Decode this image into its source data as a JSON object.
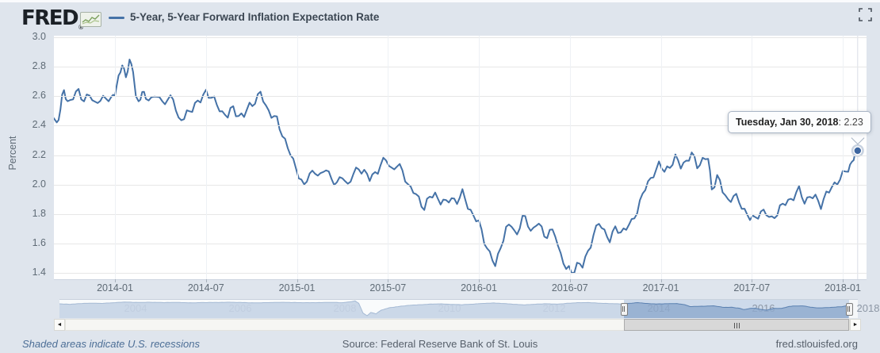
{
  "page": {
    "background": "#dfe5ed"
  },
  "header": {
    "logo_text": "FRED",
    "registered_mark": "®",
    "legend_dash_color": "#4572a7",
    "series_title": "5-Year, 5-Year Forward Inflation Expectation Rate"
  },
  "tooltip": {
    "date": "Tuesday, Jan 30, 2018",
    "separator": ": ",
    "value": "2.23"
  },
  "chart_data": {
    "type": "line",
    "title": "5-Year, 5-Year Forward Inflation Expectation Rate",
    "ylabel": "Percent",
    "ylim": [
      1.36,
      3.01
    ],
    "grid": true,
    "line_color": "#4572a7",
    "yticks": [
      {
        "label": "3.0",
        "value": 3.0
      },
      {
        "label": "2.8",
        "value": 2.8
      },
      {
        "label": "2.6",
        "value": 2.6
      },
      {
        "label": "2.4",
        "value": 2.4
      },
      {
        "label": "2.2",
        "value": 2.2
      },
      {
        "label": "2.0",
        "value": 2.0
      },
      {
        "label": "1.8",
        "value": 1.8
      },
      {
        "label": "1.6",
        "value": 1.6
      },
      {
        "label": "1.4",
        "value": 1.4
      }
    ],
    "xticks": [
      {
        "label": "2014-01",
        "t": 2014.0
      },
      {
        "label": "2014-07",
        "t": 2014.5
      },
      {
        "label": "2015-01",
        "t": 2015.0
      },
      {
        "label": "2015-07",
        "t": 2015.5
      },
      {
        "label": "2016-01",
        "t": 2016.0
      },
      {
        "label": "2016-07",
        "t": 2016.5
      },
      {
        "label": "2017-01",
        "t": 2017.0
      },
      {
        "label": "2017-07",
        "t": 2017.5
      },
      {
        "label": "2018-01",
        "t": 2018.0
      }
    ],
    "series": [
      {
        "name": "5-Year, 5-Year Forward Inflation Expectation Rate",
        "units": "Percent",
        "points": [
          [
            2013.664,
            2.45
          ],
          [
            2013.68,
            2.42
          ],
          [
            2013.7,
            2.52
          ],
          [
            2013.72,
            2.63
          ],
          [
            2013.74,
            2.56
          ],
          [
            2013.77,
            2.6
          ],
          [
            2013.8,
            2.63
          ],
          [
            2013.83,
            2.57
          ],
          [
            2013.86,
            2.61
          ],
          [
            2013.89,
            2.55
          ],
          [
            2013.92,
            2.59
          ],
          [
            2013.95,
            2.56
          ],
          [
            2013.98,
            2.6
          ],
          [
            2014.0,
            2.63
          ],
          [
            2014.02,
            2.7
          ],
          [
            2014.04,
            2.83
          ],
          [
            2014.06,
            2.74
          ],
          [
            2014.08,
            2.82
          ],
          [
            2014.1,
            2.79
          ],
          [
            2014.115,
            2.6
          ],
          [
            2014.13,
            2.55
          ],
          [
            2014.15,
            2.63
          ],
          [
            2014.17,
            2.6
          ],
          [
            2014.2,
            2.56
          ],
          [
            2014.23,
            2.62
          ],
          [
            2014.26,
            2.57
          ],
          [
            2014.29,
            2.55
          ],
          [
            2014.32,
            2.6
          ],
          [
            2014.35,
            2.45
          ],
          [
            2014.38,
            2.44
          ],
          [
            2014.41,
            2.5
          ],
          [
            2014.44,
            2.55
          ],
          [
            2014.47,
            2.57
          ],
          [
            2014.5,
            2.63
          ],
          [
            2014.53,
            2.59
          ],
          [
            2014.56,
            2.55
          ],
          [
            2014.59,
            2.49
          ],
          [
            2014.62,
            2.46
          ],
          [
            2014.65,
            2.52
          ],
          [
            2014.68,
            2.48
          ],
          [
            2014.71,
            2.46
          ],
          [
            2014.74,
            2.53
          ],
          [
            2014.77,
            2.58
          ],
          [
            2014.8,
            2.62
          ],
          [
            2014.83,
            2.52
          ],
          [
            2014.86,
            2.48
          ],
          [
            2014.89,
            2.44
          ],
          [
            2014.92,
            2.34
          ],
          [
            2014.95,
            2.25
          ],
          [
            2014.98,
            2.15
          ],
          [
            2015.01,
            2.08
          ],
          [
            2015.04,
            1.98
          ],
          [
            2015.07,
            2.06
          ],
          [
            2015.1,
            2.11
          ],
          [
            2015.13,
            2.05
          ],
          [
            2015.16,
            2.1
          ],
          [
            2015.19,
            2.05
          ],
          [
            2015.22,
            2.0
          ],
          [
            2015.25,
            2.06
          ],
          [
            2015.28,
            1.99
          ],
          [
            2015.31,
            2.07
          ],
          [
            2015.34,
            2.12
          ],
          [
            2015.37,
            2.08
          ],
          [
            2015.4,
            2.03
          ],
          [
            2015.43,
            2.09
          ],
          [
            2015.46,
            2.13
          ],
          [
            2015.49,
            2.16
          ],
          [
            2015.52,
            2.11
          ],
          [
            2015.55,
            2.14
          ],
          [
            2015.58,
            2.08
          ],
          [
            2015.61,
            2.0
          ],
          [
            2015.64,
            1.96
          ],
          [
            2015.67,
            1.9
          ],
          [
            2015.7,
            1.84
          ],
          [
            2015.73,
            1.91
          ],
          [
            2015.76,
            1.94
          ],
          [
            2015.79,
            1.89
          ],
          [
            2015.82,
            1.86
          ],
          [
            2015.85,
            1.92
          ],
          [
            2015.88,
            1.89
          ],
          [
            2015.91,
            1.93
          ],
          [
            2015.94,
            1.86
          ],
          [
            2015.97,
            1.79
          ],
          [
            2016.0,
            1.74
          ],
          [
            2016.03,
            1.62
          ],
          [
            2016.06,
            1.52
          ],
          [
            2016.09,
            1.46
          ],
          [
            2016.12,
            1.58
          ],
          [
            2016.15,
            1.68
          ],
          [
            2016.18,
            1.74
          ],
          [
            2016.21,
            1.66
          ],
          [
            2016.24,
            1.77
          ],
          [
            2016.27,
            1.73
          ],
          [
            2016.3,
            1.7
          ],
          [
            2016.33,
            1.74
          ],
          [
            2016.36,
            1.64
          ],
          [
            2016.39,
            1.69
          ],
          [
            2016.42,
            1.66
          ],
          [
            2016.45,
            1.52
          ],
          [
            2016.48,
            1.43
          ],
          [
            2016.51,
            1.4
          ],
          [
            2016.54,
            1.47
          ],
          [
            2016.57,
            1.44
          ],
          [
            2016.6,
            1.53
          ],
          [
            2016.63,
            1.68
          ],
          [
            2016.66,
            1.73
          ],
          [
            2016.69,
            1.67
          ],
          [
            2016.72,
            1.64
          ],
          [
            2016.75,
            1.7
          ],
          [
            2016.78,
            1.67
          ],
          [
            2016.81,
            1.71
          ],
          [
            2016.84,
            1.74
          ],
          [
            2016.87,
            1.83
          ],
          [
            2016.9,
            1.93
          ],
          [
            2016.93,
            2.0
          ],
          [
            2016.96,
            2.09
          ],
          [
            2016.99,
            2.13
          ],
          [
            2017.02,
            2.08
          ],
          [
            2017.05,
            2.14
          ],
          [
            2017.08,
            2.18
          ],
          [
            2017.11,
            2.12
          ],
          [
            2017.14,
            2.16
          ],
          [
            2017.17,
            2.21
          ],
          [
            2017.2,
            2.13
          ],
          [
            2017.23,
            2.16
          ],
          [
            2017.26,
            2.18
          ],
          [
            2017.28,
            1.98
          ],
          [
            2017.31,
            2.05
          ],
          [
            2017.34,
            1.95
          ],
          [
            2017.37,
            1.9
          ],
          [
            2017.4,
            1.93
          ],
          [
            2017.43,
            1.87
          ],
          [
            2017.46,
            1.83
          ],
          [
            2017.49,
            1.78
          ],
          [
            2017.52,
            1.76
          ],
          [
            2017.55,
            1.82
          ],
          [
            2017.58,
            1.8
          ],
          [
            2017.61,
            1.77
          ],
          [
            2017.64,
            1.81
          ],
          [
            2017.67,
            1.85
          ],
          [
            2017.7,
            1.9
          ],
          [
            2017.73,
            1.92
          ],
          [
            2017.76,
            1.95
          ],
          [
            2017.79,
            1.89
          ],
          [
            2017.82,
            1.93
          ],
          [
            2017.85,
            1.9
          ],
          [
            2017.88,
            1.86
          ],
          [
            2017.91,
            1.94
          ],
          [
            2017.94,
            1.98
          ],
          [
            2017.97,
            2.02
          ],
          [
            2018.0,
            2.06
          ],
          [
            2018.03,
            2.11
          ],
          [
            2018.05,
            2.16
          ],
          [
            2018.07,
            2.2
          ],
          [
            2018.082,
            2.23
          ]
        ]
      }
    ],
    "last_point": {
      "t": 2018.082,
      "value": 2.23,
      "date_label": "Tuesday, Jan 30, 2018"
    }
  },
  "navigator": {
    "area_color": "#8fa9cd",
    "edge_color": "#5b81b1",
    "year_labels": [
      {
        "label": "2004",
        "year": 2004
      },
      {
        "label": "2006",
        "year": 2006
      },
      {
        "label": "2008",
        "year": 2008
      },
      {
        "label": "2010",
        "year": 2010
      },
      {
        "label": "2012",
        "year": 2012
      },
      {
        "label": "2014",
        "year": 2014
      },
      {
        "label": "2016",
        "year": 2016
      },
      {
        "label": "2018",
        "year": 2018
      }
    ],
    "xrange": [
      2003.0,
      2018.26
    ],
    "yrange": [
      0,
      3.2
    ],
    "selection": {
      "from_t": 2013.664,
      "to_t": 2018.082
    },
    "points": [
      [
        2003.0,
        2.5
      ],
      [
        2003.2,
        2.42
      ],
      [
        2003.4,
        2.55
      ],
      [
        2003.6,
        2.62
      ],
      [
        2003.8,
        2.58
      ],
      [
        2004.0,
        2.68
      ],
      [
        2004.25,
        2.82
      ],
      [
        2004.5,
        2.74
      ],
      [
        2004.75,
        2.78
      ],
      [
        2005.0,
        2.72
      ],
      [
        2005.25,
        2.76
      ],
      [
        2005.5,
        2.68
      ],
      [
        2005.75,
        2.72
      ],
      [
        2006.0,
        2.74
      ],
      [
        2006.25,
        2.78
      ],
      [
        2006.5,
        2.72
      ],
      [
        2006.75,
        2.68
      ],
      [
        2007.0,
        2.72
      ],
      [
        2007.25,
        2.76
      ],
      [
        2007.5,
        2.72
      ],
      [
        2007.75,
        2.7
      ],
      [
        2008.0,
        2.72
      ],
      [
        2008.2,
        2.76
      ],
      [
        2008.4,
        2.7
      ],
      [
        2008.55,
        2.85
      ],
      [
        2008.65,
        3.02
      ],
      [
        2008.72,
        2.6
      ],
      [
        2008.8,
        0.9
      ],
      [
        2008.88,
        0.4
      ],
      [
        2008.95,
        1.0
      ],
      [
        2009.05,
        0.75
      ],
      [
        2009.15,
        1.4
      ],
      [
        2009.3,
        1.8
      ],
      [
        2009.5,
        2.05
      ],
      [
        2009.7,
        2.25
      ],
      [
        2009.9,
        2.35
      ],
      [
        2010.1,
        2.45
      ],
      [
        2010.3,
        2.5
      ],
      [
        2010.5,
        2.4
      ],
      [
        2010.7,
        2.35
      ],
      [
        2010.9,
        2.45
      ],
      [
        2011.1,
        2.58
      ],
      [
        2011.3,
        2.65
      ],
      [
        2011.5,
        2.55
      ],
      [
        2011.7,
        2.42
      ],
      [
        2011.9,
        2.32
      ],
      [
        2012.1,
        2.45
      ],
      [
        2012.3,
        2.52
      ],
      [
        2012.5,
        2.44
      ],
      [
        2012.7,
        2.58
      ],
      [
        2012.9,
        2.7
      ],
      [
        2013.1,
        2.72
      ],
      [
        2013.3,
        2.62
      ],
      [
        2013.5,
        2.55
      ],
      [
        2013.7,
        2.5
      ],
      [
        2013.9,
        2.58
      ],
      [
        2014.05,
        2.72
      ],
      [
        2014.2,
        2.58
      ],
      [
        2014.4,
        2.48
      ],
      [
        2014.6,
        2.52
      ],
      [
        2014.8,
        2.55
      ],
      [
        2014.95,
        2.35
      ],
      [
        2015.05,
        2.02
      ],
      [
        2015.2,
        2.06
      ],
      [
        2015.35,
        2.1
      ],
      [
        2015.5,
        2.15
      ],
      [
        2015.7,
        1.88
      ],
      [
        2015.85,
        1.9
      ],
      [
        2016.0,
        1.72
      ],
      [
        2016.08,
        1.48
      ],
      [
        2016.2,
        1.7
      ],
      [
        2016.3,
        1.73
      ],
      [
        2016.45,
        1.45
      ],
      [
        2016.52,
        1.4
      ],
      [
        2016.65,
        1.7
      ],
      [
        2016.8,
        1.7
      ],
      [
        2016.95,
        2.05
      ],
      [
        2017.05,
        2.12
      ],
      [
        2017.2,
        2.15
      ],
      [
        2017.35,
        1.92
      ],
      [
        2017.5,
        1.78
      ],
      [
        2017.65,
        1.83
      ],
      [
        2017.8,
        1.91
      ],
      [
        2017.95,
        2.0
      ],
      [
        2018.082,
        2.23
      ]
    ]
  },
  "scrollbar": {
    "left_arrow": "◄",
    "right_arrow": "►"
  },
  "footer": {
    "note": "Shaded areas indicate U.S. recessions",
    "source": "Source: Federal Reserve Bank of St. Louis",
    "site": "fred.stlouisfed.org"
  }
}
